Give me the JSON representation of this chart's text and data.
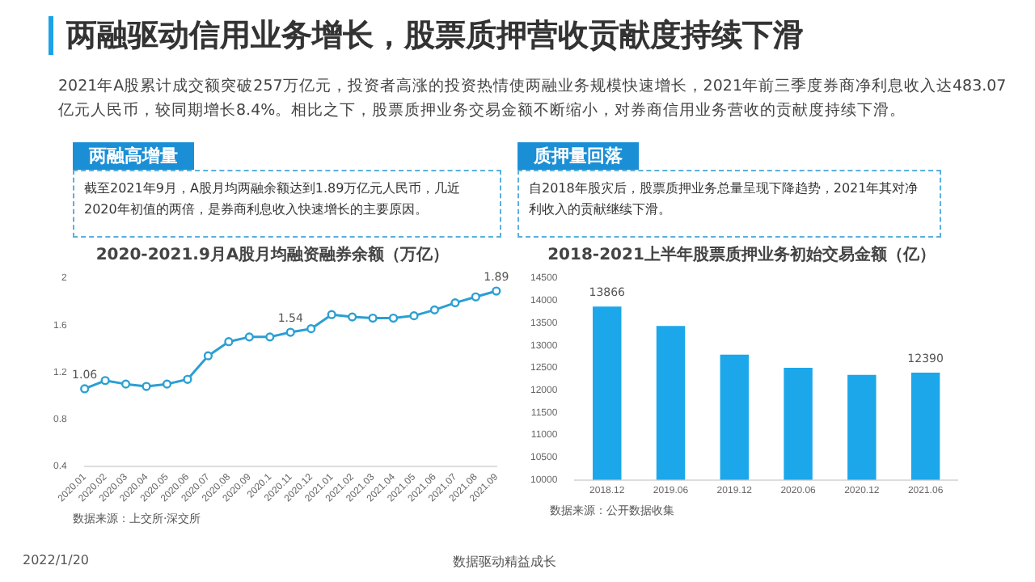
{
  "chart_data": [
    {
      "type": "line",
      "title": "2020-2021.9月A股月均融资融券余额（万亿）",
      "categories": [
        "2020.01",
        "2020.02",
        "2020.03",
        "2020.04",
        "2020.05",
        "2020.06",
        "2020.07",
        "2020.08",
        "2020.09",
        "2020.1",
        "2020.11",
        "2020.12",
        "2021.01",
        "2021.02",
        "2021.03",
        "2021.04",
        "2021.05",
        "2021.06",
        "2021.07",
        "2021.08",
        "2021.09"
      ],
      "series": [
        {
          "color": "#2b9fd3",
          "values": [
            1.06,
            1.13,
            1.1,
            1.08,
            1.1,
            1.14,
            1.34,
            1.46,
            1.5,
            1.5,
            1.54,
            1.57,
            1.69,
            1.67,
            1.66,
            1.66,
            1.68,
            1.73,
            1.79,
            1.84,
            1.89
          ],
          "value_labels": [
            "1.06",
            null,
            null,
            null,
            null,
            null,
            null,
            null,
            null,
            null,
            "1.54",
            null,
            null,
            null,
            null,
            null,
            null,
            null,
            null,
            null,
            "1.89"
          ]
        }
      ],
      "ylim": [
        0.4,
        2
      ],
      "yticks": [
        0.4,
        0.8,
        1.2,
        1.6,
        2
      ],
      "grid": false,
      "legend": false,
      "marker": "circle",
      "line_style": "solid",
      "annotations": [
        "两融驱动信用业务增长，股票质押营收贡献度持续下滑",
        "2021年A股累计成交额突破257万亿元，投资者高涨的投资热情使两融业务规模快速增长，2021年前三季度券商净利息收入达483.07亿元人民币，较同期增长8.4%。相比之下，股票质押业务交易金额不断缩小，对券商信用业务营收的贡献度持续下滑。",
        "两融高增量",
        "截至2021年9月，A股月均两融余额达到1.89万亿元人民币，几近2020年初值的两倍，是券商利息收入快速增长的主要原因。",
        "数据来源：上交所·深交所",
        "2022/1/20",
        "数据驱动精益成长"
      ]
    },
    {
      "type": "bar",
      "title": "2018-2021上半年股票质押业务初始交易金额（亿）",
      "categories": [
        "2018.12",
        "2019.06",
        "2019.12",
        "2020.06",
        "2020.12",
        "2021.06"
      ],
      "series": [
        {
          "color": "#1ba7ea",
          "values": [
            13866,
            13430,
            12790,
            12500,
            12340,
            12390
          ],
          "value_labels": [
            "13866",
            null,
            null,
            null,
            null,
            "12390"
          ]
        }
      ],
      "ylim": [
        10000,
        14500
      ],
      "yticks": [
        10000,
        10500,
        11000,
        11500,
        12000,
        12500,
        13000,
        13500,
        14000,
        14500
      ],
      "grid": false,
      "legend": false,
      "annotations": [
        "质押量回落",
        "自2018年股灾后，股票质押业务总量呈现下降趋势，2021年其对净利收入的贡献继续下滑。",
        "数据来源：公开数据收集"
      ]
    }
  ]
}
